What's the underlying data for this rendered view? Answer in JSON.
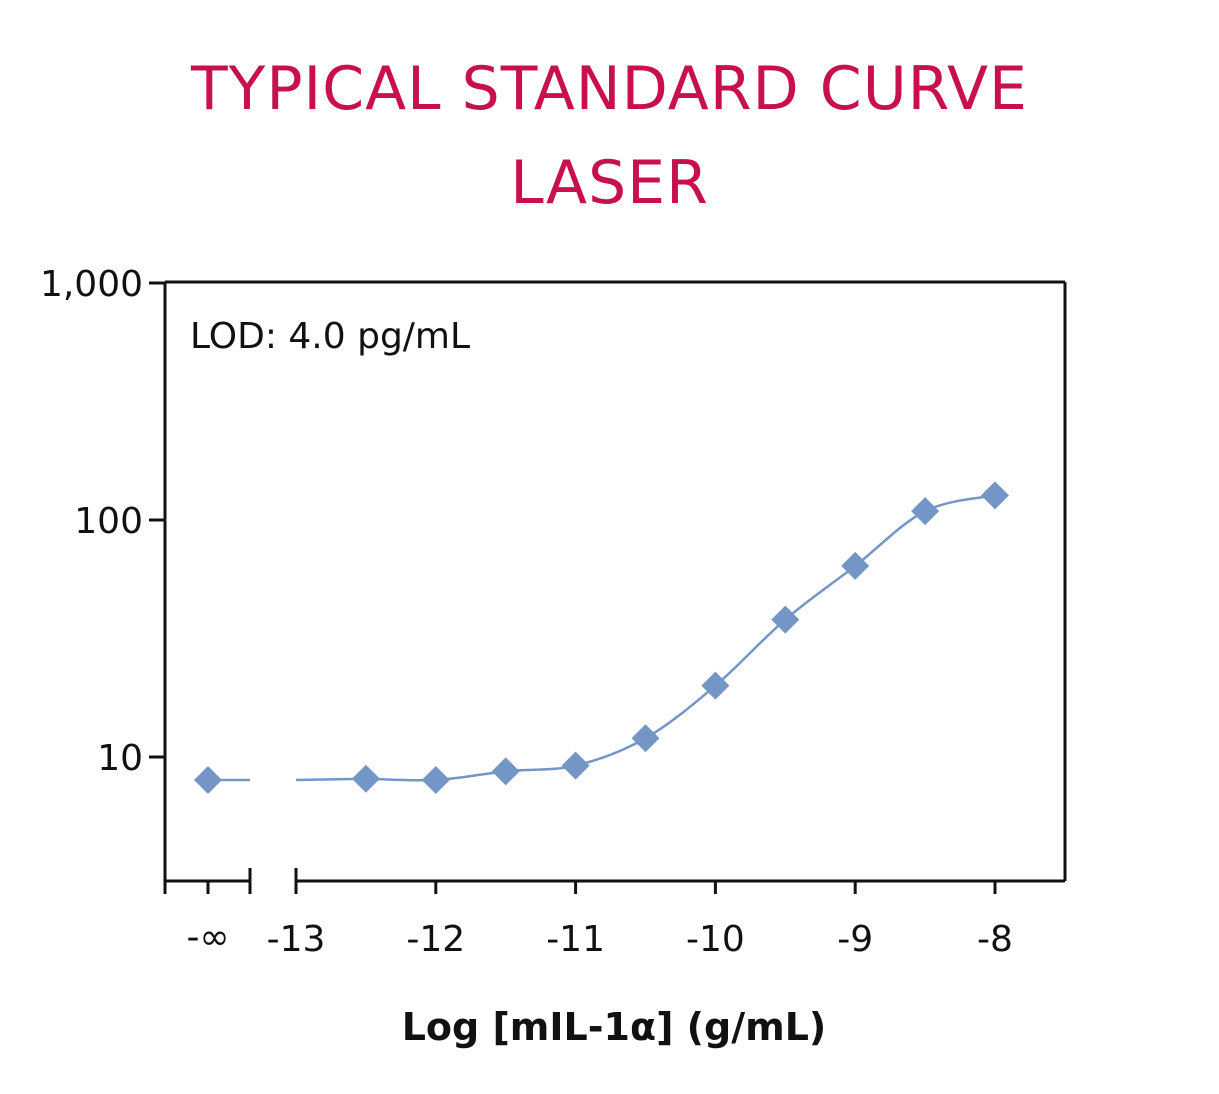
{
  "colors": {
    "title": "#c8104c",
    "series": "#7396c6",
    "axis": "#111111"
  },
  "chart_data": {
    "type": "scatter",
    "title": "TYPICAL STANDARD CURVE",
    "subtitle": "LASER",
    "annotation": "LOD: 4.0 pg/mL",
    "xlabel": "Log [mIL-1α] (g/mL)",
    "ylabel": "",
    "yscale": "log",
    "ylim": [
      3,
      1000
    ],
    "xlim": [
      -13.3,
      -7.5
    ],
    "y_ticks": [
      10,
      100,
      1000
    ],
    "y_tick_labels": [
      "10",
      "100",
      "1,000"
    ],
    "x_ticks": [
      -13,
      -12,
      -11,
      -10,
      -9,
      -8
    ],
    "x_tick_labels": [
      "-13",
      "-12",
      "-11",
      "-10",
      "-9",
      "-8"
    ],
    "x_break_label": "-∞",
    "grid": false,
    "series": [
      {
        "zero_point": {
          "x_label": "-∞",
          "y": 8.0
        },
        "x": [
          -12.5,
          -12,
          -11.5,
          -11,
          -10.5,
          -10,
          -9.5,
          -9,
          -8.5,
          -8
        ],
        "y": [
          8.1,
          8.0,
          8.7,
          9.2,
          12,
          20,
          38,
          64,
          109,
          127
        ]
      }
    ]
  }
}
